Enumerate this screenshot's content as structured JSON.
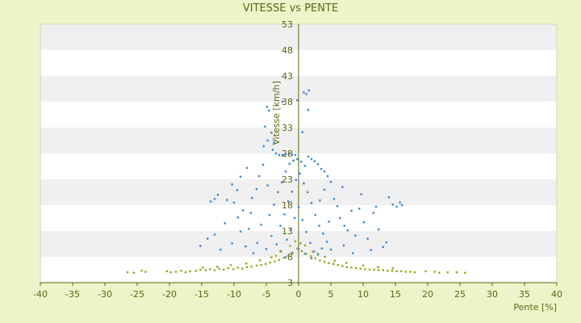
{
  "chart_data": {
    "type": "scatter",
    "title": "VITESSE vs PENTE",
    "xlabel": "Pente [%]",
    "ylabel": "Vitesse [km/h]",
    "xlim": [
      -40,
      40
    ],
    "ylim": [
      3,
      53
    ],
    "x_ticks": [
      -40,
      -35,
      -30,
      -25,
      -20,
      -15,
      -10,
      -5,
      0,
      5,
      10,
      15,
      20,
      25,
      30,
      35,
      40
    ],
    "y_ticks": [
      3,
      8,
      13,
      18,
      23,
      28,
      33,
      38,
      43,
      48,
      53
    ],
    "grid": "horizontal alternating bands",
    "colors": {
      "background": "#eef3c9",
      "plot_band_light": "#ffffff",
      "plot_band_dark": "#f0f0f0",
      "axis": "#5b6612",
      "text": "#5b6612",
      "series_speed": "#3a87d6",
      "series_low": "#9aa51a"
    },
    "series": [
      {
        "color": "#3a87d6",
        "points": [
          [
            -4.9,
            37.0
          ],
          [
            -4.6,
            36.3
          ],
          [
            -5.2,
            33.2
          ],
          [
            -4.2,
            32.0
          ],
          [
            -4.8,
            30.5
          ],
          [
            -3.8,
            30.1
          ],
          [
            -5.4,
            29.4
          ],
          [
            -4.0,
            28.7
          ],
          [
            -3.5,
            28.0
          ],
          [
            -3.0,
            27.7
          ],
          [
            -2.5,
            27.7
          ],
          [
            -2.0,
            27.8
          ],
          [
            -1.5,
            27.9
          ],
          [
            -1.0,
            27.8
          ],
          [
            -0.5,
            27.7
          ],
          [
            -0.2,
            38.3
          ],
          [
            0.6,
            32.1
          ],
          [
            0.8,
            39.8
          ],
          [
            1.2,
            39.5
          ],
          [
            1.6,
            40.2
          ],
          [
            1.5,
            36.4
          ],
          [
            -2.5,
            38.0
          ],
          [
            1.5,
            27.4
          ],
          [
            2.0,
            26.9
          ],
          [
            2.5,
            26.5
          ],
          [
            3.0,
            25.9
          ],
          [
            3.5,
            25.0
          ],
          [
            4.0,
            24.5
          ],
          [
            4.5,
            23.6
          ],
          [
            5.0,
            22.5
          ],
          [
            -8.0,
            25.2
          ],
          [
            -9.0,
            23.5
          ],
          [
            -10.3,
            22.0
          ],
          [
            -9.5,
            20.9
          ],
          [
            -12.5,
            20.0
          ],
          [
            -13.0,
            19.2
          ],
          [
            -13.6,
            18.7
          ],
          [
            -11.1,
            19.0
          ],
          [
            -10.0,
            18.5
          ],
          [
            -7.2,
            19.4
          ],
          [
            -6.5,
            21.1
          ],
          [
            -8.6,
            17.0
          ],
          [
            -9.4,
            15.6
          ],
          [
            -7.4,
            16.5
          ],
          [
            -11.4,
            14.5
          ],
          [
            -13.0,
            12.3
          ],
          [
            -14.1,
            11.5
          ],
          [
            -15.2,
            10.1
          ],
          [
            -12.1,
            9.4
          ],
          [
            -10.3,
            10.6
          ],
          [
            -9.0,
            12.9
          ],
          [
            -7.7,
            13.4
          ],
          [
            -8.2,
            10.0
          ],
          [
            -6.4,
            10.7
          ],
          [
            -7.0,
            8.7
          ],
          [
            -5.0,
            9.5
          ],
          [
            -4.2,
            12.0
          ],
          [
            -5.8,
            14.2
          ],
          [
            -4.5,
            16.1
          ],
          [
            -3.8,
            18.1
          ],
          [
            -3.2,
            20.5
          ],
          [
            -2.6,
            22.4
          ],
          [
            -2.0,
            24.5
          ],
          [
            -1.4,
            26.0
          ],
          [
            -0.8,
            26.6
          ],
          [
            -0.2,
            26.9
          ],
          [
            0.4,
            26.4
          ],
          [
            1.0,
            25.6
          ],
          [
            -2.8,
            14.0
          ],
          [
            -2.2,
            16.2
          ],
          [
            -1.6,
            18.7
          ],
          [
            -1.0,
            20.6
          ],
          [
            -0.4,
            22.9
          ],
          [
            0.2,
            24.1
          ],
          [
            0.8,
            22.2
          ],
          [
            1.4,
            20.5
          ],
          [
            2.0,
            18.4
          ],
          [
            2.6,
            16.1
          ],
          [
            3.2,
            14.0
          ],
          [
            3.8,
            12.5
          ],
          [
            4.4,
            10.9
          ],
          [
            5.0,
            9.4
          ],
          [
            -3.4,
            10.4
          ],
          [
            -2.8,
            9.1
          ],
          [
            -1.8,
            11.3
          ],
          [
            -1.2,
            13.4
          ],
          [
            -0.6,
            15.5
          ],
          [
            0.0,
            17.6
          ],
          [
            0.6,
            15.1
          ],
          [
            1.2,
            12.8
          ],
          [
            1.8,
            10.7
          ],
          [
            2.4,
            9.0
          ],
          [
            3.0,
            8.4
          ],
          [
            3.6,
            9.6
          ],
          [
            6.0,
            17.8
          ],
          [
            6.4,
            15.5
          ],
          [
            7.1,
            14.0
          ],
          [
            7.6,
            13.1
          ],
          [
            8.2,
            16.9
          ],
          [
            8.8,
            12.1
          ],
          [
            9.4,
            17.3
          ],
          [
            10.1,
            14.7
          ],
          [
            10.7,
            11.5
          ],
          [
            11.2,
            9.3
          ],
          [
            12.0,
            17.7
          ],
          [
            12.4,
            13.3
          ],
          [
            13.1,
            9.9
          ],
          [
            13.6,
            10.8
          ],
          [
            14.0,
            19.5
          ],
          [
            14.6,
            18.1
          ],
          [
            15.2,
            17.7
          ],
          [
            15.7,
            18.5
          ],
          [
            16.0,
            18.0
          ],
          [
            11.6,
            16.5
          ],
          [
            9.7,
            20.1
          ],
          [
            7.0,
            10.2
          ],
          [
            8.4,
            8.7
          ],
          [
            4.0,
            21.0
          ],
          [
            5.5,
            19.2
          ],
          [
            6.8,
            21.5
          ],
          [
            -2.0,
            7.9
          ],
          [
            -1.0,
            8.8
          ],
          [
            0.0,
            9.5
          ],
          [
            1.0,
            8.6
          ],
          [
            2.0,
            7.7
          ],
          [
            -6.1,
            23.6
          ],
          [
            -5.5,
            25.8
          ],
          [
            -4.8,
            21.8
          ],
          [
            4.7,
            14.8
          ],
          [
            3.3,
            18.9
          ]
        ]
      },
      {
        "color": "#9aa51a",
        "points": [
          [
            -26.5,
            5.0
          ],
          [
            -25.5,
            4.9
          ],
          [
            -24.3,
            5.3
          ],
          [
            -23.7,
            5.1
          ],
          [
            -20.4,
            5.2
          ],
          [
            -19.8,
            5.0
          ],
          [
            -19.0,
            5.1
          ],
          [
            -18.2,
            5.3
          ],
          [
            -17.5,
            5.0
          ],
          [
            -16.8,
            5.2
          ],
          [
            -15.9,
            5.3
          ],
          [
            -15.2,
            5.5
          ],
          [
            -14.4,
            5.4
          ],
          [
            -13.7,
            5.6
          ],
          [
            -13.0,
            5.4
          ],
          [
            -12.3,
            5.7
          ],
          [
            -11.6,
            5.5
          ],
          [
            -10.9,
            5.8
          ],
          [
            -10.1,
            5.6
          ],
          [
            -9.4,
            5.9
          ],
          [
            -8.7,
            5.7
          ],
          [
            -8.0,
            6.0
          ],
          [
            -7.3,
            6.1
          ],
          [
            -6.5,
            6.3
          ],
          [
            -5.8,
            6.4
          ],
          [
            -5.1,
            6.6
          ],
          [
            -4.4,
            6.9
          ],
          [
            -3.7,
            7.1
          ],
          [
            -3.0,
            7.4
          ],
          [
            -2.3,
            7.8
          ],
          [
            -1.6,
            8.2
          ],
          [
            -0.9,
            8.7
          ],
          [
            -0.2,
            9.6
          ],
          [
            0.5,
            9.1
          ],
          [
            1.2,
            8.6
          ],
          [
            1.9,
            8.1
          ],
          [
            2.6,
            7.7
          ],
          [
            3.3,
            7.3
          ],
          [
            4.0,
            7.0
          ],
          [
            4.7,
            6.8
          ],
          [
            5.4,
            6.6
          ],
          [
            6.1,
            6.4
          ],
          [
            6.8,
            6.2
          ],
          [
            7.5,
            6.0
          ],
          [
            8.2,
            5.9
          ],
          [
            8.9,
            5.8
          ],
          [
            9.6,
            5.7
          ],
          [
            10.3,
            5.6
          ],
          [
            11.0,
            5.5
          ],
          [
            11.7,
            5.5
          ],
          [
            12.4,
            5.4
          ],
          [
            13.1,
            5.4
          ],
          [
            13.8,
            5.3
          ],
          [
            14.5,
            5.3
          ],
          [
            15.2,
            5.2
          ],
          [
            15.9,
            5.2
          ],
          [
            16.6,
            5.1
          ],
          [
            17.3,
            5.1
          ],
          [
            18.0,
            5.0
          ],
          [
            19.7,
            5.2
          ],
          [
            21.1,
            5.1
          ],
          [
            21.8,
            4.9
          ],
          [
            23.1,
            5.0
          ],
          [
            24.5,
            5.0
          ],
          [
            25.8,
            4.9
          ],
          [
            -2.7,
            9.0
          ],
          [
            -1.3,
            10.1
          ],
          [
            -0.5,
            11.0
          ],
          [
            0.3,
            10.6
          ],
          [
            1.0,
            10.2
          ],
          [
            -3.5,
            8.2
          ],
          [
            2.2,
            9.0
          ],
          [
            3.0,
            8.6
          ],
          [
            -4.2,
            7.9
          ],
          [
            4.1,
            8.0
          ],
          [
            -6.0,
            7.3
          ],
          [
            5.6,
            7.2
          ],
          [
            -8.1,
            6.7
          ],
          [
            7.4,
            6.8
          ],
          [
            -10.5,
            6.4
          ],
          [
            10.0,
            6.3
          ],
          [
            -12.6,
            6.1
          ],
          [
            12.3,
            6.0
          ],
          [
            -14.8,
            5.9
          ],
          [
            14.6,
            5.8
          ]
        ]
      }
    ]
  }
}
